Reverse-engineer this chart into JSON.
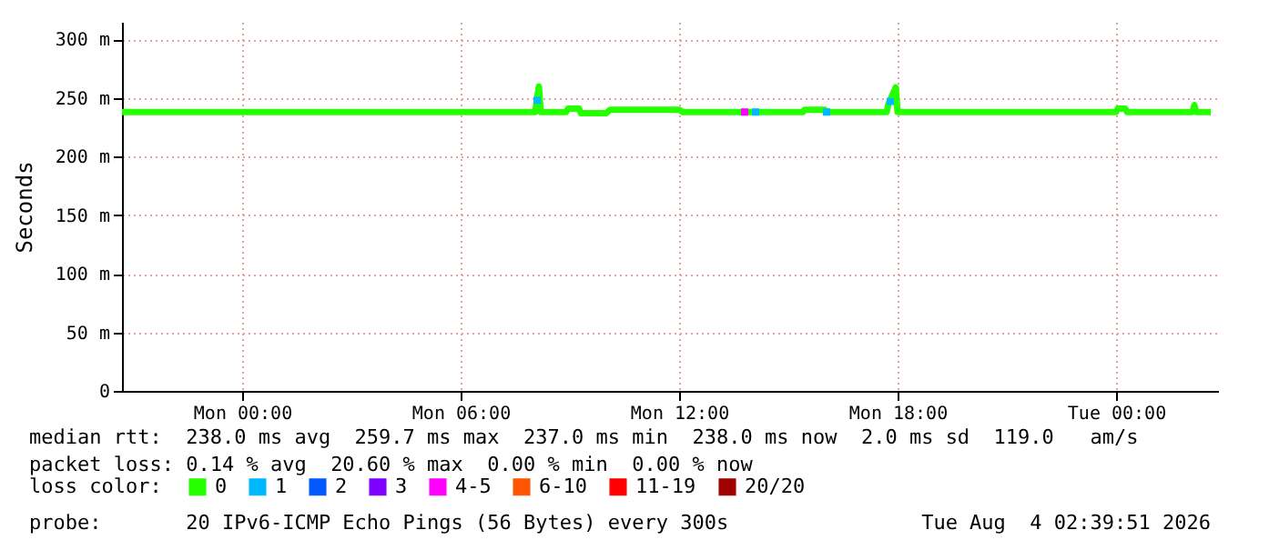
{
  "chart_data": {
    "type": "line",
    "ylabel": "Seconds",
    "legend_title": "loss color:",
    "legend": "bottom",
    "grid": true,
    "xlim": [
      "2026-08-02T20:42",
      "2026-08-04T02:48"
    ],
    "xticks": [
      {
        "value": "2026-08-03T00:00",
        "label": "Mon 00:00"
      },
      {
        "value": "2026-08-03T06:00",
        "label": "Mon 06:00"
      },
      {
        "value": "2026-08-03T12:00",
        "label": "Mon 12:00"
      },
      {
        "value": "2026-08-03T18:00",
        "label": "Mon 18:00"
      },
      {
        "value": "2026-08-04T00:00",
        "label": "Tue 00:00"
      }
    ],
    "ylim": [
      0,
      315
    ],
    "yticks": [
      0,
      {
        "value": 50,
        "label": "50 m"
      },
      {
        "value": 100,
        "label": "100 m"
      },
      {
        "value": 150,
        "label": "150 m"
      },
      {
        "value": 200,
        "label": "200 m"
      },
      {
        "value": 250,
        "label": "250 m"
      },
      {
        "value": 300,
        "label": "300 m"
      }
    ],
    "series": [
      {
        "name": "0",
        "color": "#26ff00",
        "marker": "none",
        "x": [
          "2026-08-02T20:42",
          "2026-08-03T08:03",
          "2026-08-03T08:06",
          "2026-08-03T08:09",
          "2026-08-03T08:12",
          "2026-08-03T08:54",
          "2026-08-03T08:57",
          "2026-08-03T09:15",
          "2026-08-03T09:18",
          "2026-08-03T10:00",
          "2026-08-03T10:06",
          "2026-08-03T12:00",
          "2026-08-03T12:06",
          "2026-08-03T15:24",
          "2026-08-03T15:27",
          "2026-08-03T16:00",
          "2026-08-03T16:03",
          "2026-08-03T17:42",
          "2026-08-03T17:45",
          "2026-08-03T17:51",
          "2026-08-03T17:57",
          "2026-08-03T18:00",
          "2026-08-04T00:00",
          "2026-08-04T00:03",
          "2026-08-04T00:15",
          "2026-08-04T00:18",
          "2026-08-04T02:06",
          "2026-08-04T02:09",
          "2026-08-04T02:12",
          "2026-08-04T02:36"
        ],
        "values": [
          238,
          238,
          250,
          259.7,
          238,
          238,
          241,
          241,
          237,
          237,
          240,
          240,
          238,
          238,
          240,
          240,
          238,
          238,
          245,
          252,
          259,
          238,
          238,
          241,
          241,
          238,
          238,
          244,
          238,
          238
        ]
      },
      {
        "name": "1",
        "color": "#00b8ff",
        "type": "scatter",
        "marker": "square",
        "x": [
          "2026-08-03T08:06",
          "2026-08-03T14:06",
          "2026-08-03T16:03",
          "2026-08-03T17:48"
        ],
        "values": [
          248,
          238,
          238,
          247
        ]
      },
      {
        "name": "2",
        "color": "#0059ff",
        "type": "scatter",
        "marker": "square"
      },
      {
        "name": "3",
        "color": "#7e00ff",
        "type": "scatter",
        "marker": "square"
      },
      {
        "name": "4-5",
        "color": "#ff00ff",
        "type": "scatter",
        "marker": "square",
        "x": [
          "2026-08-03T13:48"
        ],
        "values": [
          238
        ]
      },
      {
        "name": "6-10",
        "color": "#ff5500",
        "type": "scatter",
        "marker": "square"
      },
      {
        "name": "11-19",
        "color": "#ff0000",
        "type": "scatter",
        "marker": "square"
      },
      {
        "name": "20/20",
        "color": "#a10000",
        "type": "scatter",
        "marker": "square"
      }
    ],
    "annotations": [
      "median rtt:  238.0 ms avg  259.7 ms max  237.0 ms min  238.0 ms now  2.0 ms sd  119.0   am/s",
      "packet loss: 0.14 % avg  20.60 % max  0.00 % min  0.00 % now",
      "probe:       20 IPv6-ICMP Echo Pings (56 Bytes) every 300s                Tue Aug  4 02:39:51 2026"
    ]
  }
}
